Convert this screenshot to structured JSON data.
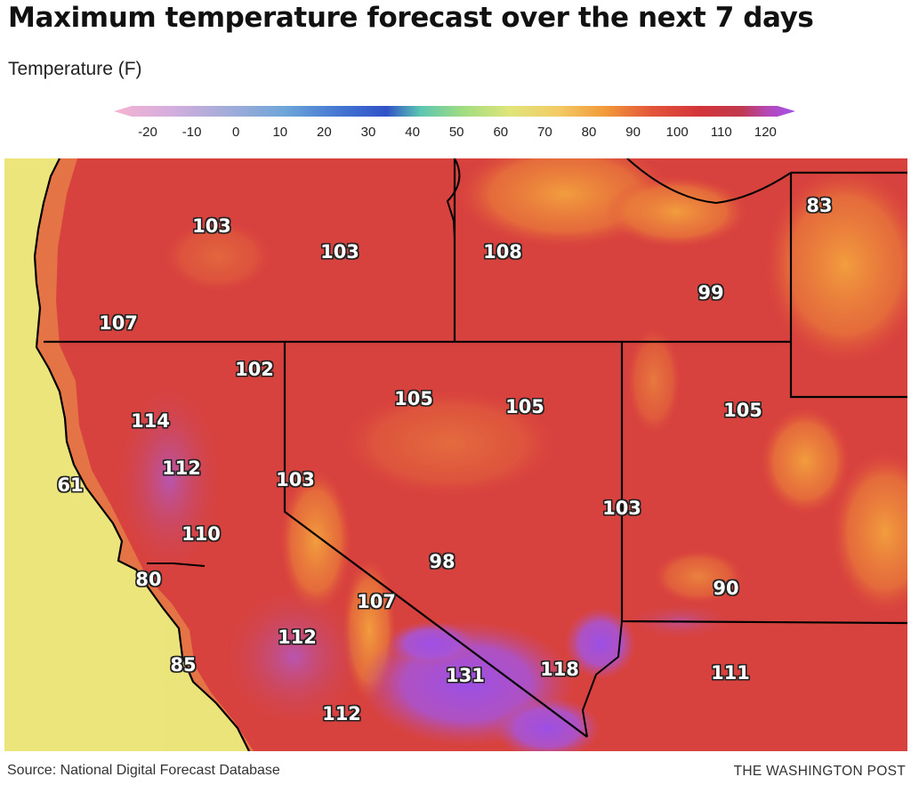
{
  "title": "Maximum temperature forecast over the next 7 days",
  "legend": {
    "label": "Temperature (F)",
    "ticks": [
      "-20",
      "-10",
      "0",
      "10",
      "20",
      "30",
      "40",
      "50",
      "60",
      "70",
      "80",
      "90",
      "100",
      "110",
      "120"
    ],
    "colors": {
      "pink": "#f4a6c8",
      "lavender": "#b8a6d8",
      "blue": "#5b8fd2",
      "deep_blue": "#3a5fcf",
      "green": "#8fd68a",
      "yellow": "#e6e070",
      "orange": "#f0a03c",
      "red": "#d8363c",
      "purple": "#a855e8"
    }
  },
  "map": {
    "colors": {
      "ocean_yellow": "#ede67a",
      "coast_green": "#b9da79",
      "land_red": "#d9443e",
      "highland_orange": "#ef8a3c",
      "hot_purple": "#a654e6",
      "border": "#000000"
    },
    "temperatures": [
      "103",
      "103",
      "108",
      "83",
      "99",
      "107",
      "102",
      "114",
      "105",
      "105",
      "105",
      "112",
      "61",
      "103",
      "103",
      "110",
      "98",
      "80",
      "90",
      "107",
      "112",
      "85",
      "131",
      "118",
      "111",
      "112"
    ]
  },
  "footer": {
    "source": "Source: National Digital Forecast Database",
    "credit": "THE WASHINGTON POST"
  }
}
